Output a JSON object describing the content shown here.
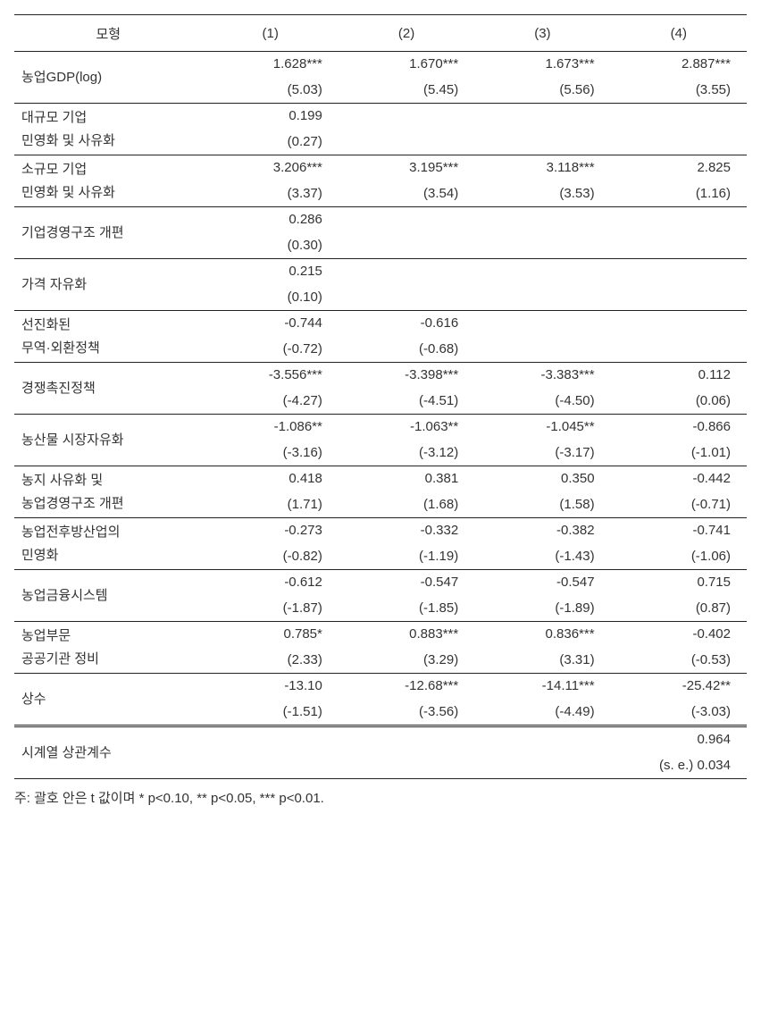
{
  "header": {
    "rowlabel": "모형",
    "cols": [
      "(1)",
      "(2)",
      "(3)",
      "(4)"
    ]
  },
  "rows": [
    {
      "label": "농업GDP(log)",
      "cells": [
        {
          "coef": "1.628***",
          "t": "(5.03)"
        },
        {
          "coef": "1.670***",
          "t": "(5.45)"
        },
        {
          "coef": "1.673***",
          "t": "(5.56)"
        },
        {
          "coef": "2.887***",
          "t": "(3.55)"
        }
      ]
    },
    {
      "label": "대규모 기업\n민영화 및 사유화",
      "cells": [
        {
          "coef": "0.199",
          "t": "(0.27)"
        },
        null,
        null,
        null
      ]
    },
    {
      "label": "소규모 기업\n민영화 및 사유화",
      "cells": [
        {
          "coef": "3.206***",
          "t": "(3.37)"
        },
        {
          "coef": "3.195***",
          "t": "(3.54)"
        },
        {
          "coef": "3.118***",
          "t": "(3.53)"
        },
        {
          "coef": "2.825",
          "t": "(1.16)"
        }
      ]
    },
    {
      "label": "기업경영구조 개편",
      "cells": [
        {
          "coef": "0.286",
          "t": "(0.30)"
        },
        null,
        null,
        null
      ]
    },
    {
      "label": "가격 자유화",
      "cells": [
        {
          "coef": "0.215",
          "t": "(0.10)"
        },
        null,
        null,
        null
      ]
    },
    {
      "label": "선진화된\n무역·외환정책",
      "cells": [
        {
          "coef": "-0.744",
          "t": "(-0.72)"
        },
        {
          "coef": "-0.616",
          "t": "(-0.68)"
        },
        null,
        null
      ]
    },
    {
      "label": "경쟁촉진정책",
      "cells": [
        {
          "coef": "-3.556***",
          "t": "(-4.27)"
        },
        {
          "coef": "-3.398***",
          "t": "(-4.51)"
        },
        {
          "coef": "-3.383***",
          "t": "(-4.50)"
        },
        {
          "coef": "0.112",
          "t": "(0.06)"
        }
      ]
    },
    {
      "label": "농산물 시장자유화",
      "cells": [
        {
          "coef": "-1.086**",
          "t": "(-3.16)"
        },
        {
          "coef": "-1.063**",
          "t": "(-3.12)"
        },
        {
          "coef": "-1.045**",
          "t": "(-3.17)"
        },
        {
          "coef": "-0.866",
          "t": "(-1.01)"
        }
      ]
    },
    {
      "label": "농지 사유화 및\n농업경영구조 개편",
      "cells": [
        {
          "coef": "0.418",
          "t": "(1.71)"
        },
        {
          "coef": "0.381",
          "t": "(1.68)"
        },
        {
          "coef": "0.350",
          "t": "(1.58)"
        },
        {
          "coef": "-0.442",
          "t": "(-0.71)"
        }
      ]
    },
    {
      "label": "농업전후방산업의\n민영화",
      "cells": [
        {
          "coef": "-0.273",
          "t": "(-0.82)"
        },
        {
          "coef": "-0.332",
          "t": "(-1.19)"
        },
        {
          "coef": "-0.382",
          "t": "(-1.43)"
        },
        {
          "coef": "-0.741",
          "t": "(-1.06)"
        }
      ]
    },
    {
      "label": "농업금융시스템",
      "cells": [
        {
          "coef": "-0.612",
          "t": "(-1.87)"
        },
        {
          "coef": "-0.547",
          "t": "(-1.85)"
        },
        {
          "coef": "-0.547",
          "t": "(-1.89)"
        },
        {
          "coef": "0.715",
          "t": "(0.87)"
        }
      ]
    },
    {
      "label": "농업부문\n공공기관 정비",
      "cells": [
        {
          "coef": "0.785*",
          "t": "(2.33)"
        },
        {
          "coef": "0.883***",
          "t": "(3.29)"
        },
        {
          "coef": "0.836***",
          "t": "(3.31)"
        },
        {
          "coef": "-0.402",
          "t": "(-0.53)"
        }
      ]
    },
    {
      "label": "상수",
      "cells": [
        {
          "coef": "-13.10",
          "t": "(-1.51)"
        },
        {
          "coef": "-12.68***",
          "t": "(-3.56)"
        },
        {
          "coef": "-14.11***",
          "t": "(-4.49)"
        },
        {
          "coef": "-25.42**",
          "t": "(-3.03)"
        }
      ]
    }
  ],
  "footer_row": {
    "label": "시계열 상관계수",
    "cells": [
      null,
      null,
      null,
      {
        "coef": "0.964",
        "t": "(s. e.) 0.034"
      }
    ]
  },
  "note": "주: 괄호 안은 t 값이며 * p<0.10, ** p<0.05, *** p<0.01."
}
